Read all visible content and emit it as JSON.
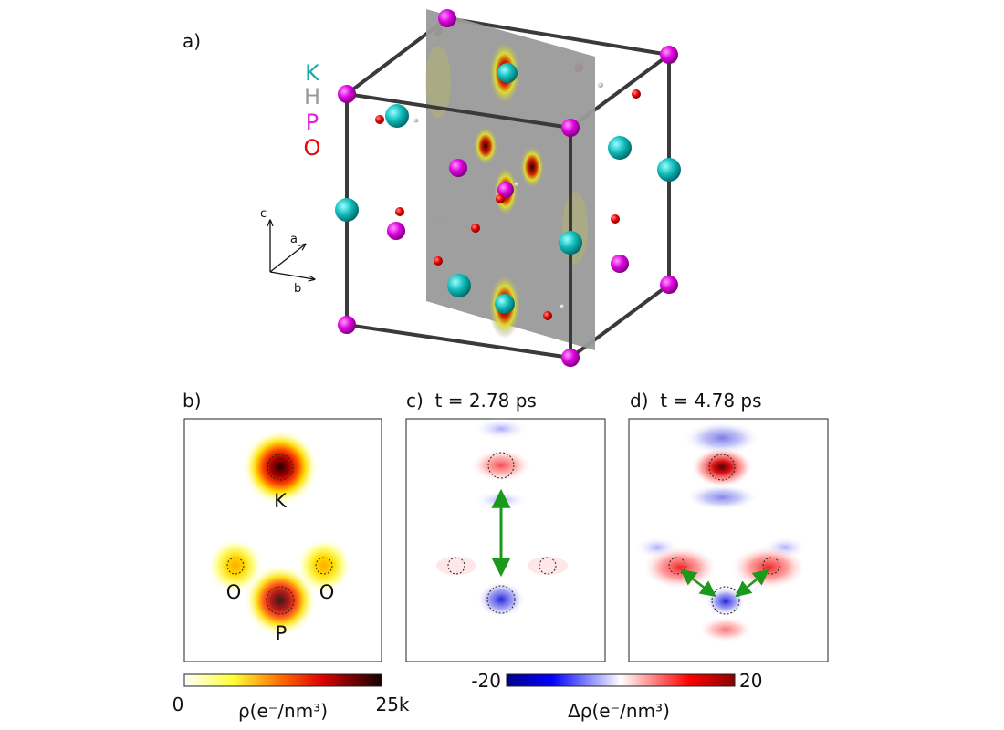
{
  "panel_a": {
    "label": "a)",
    "legend": [
      "K",
      "H",
      "P",
      "O"
    ],
    "axes": [
      "c",
      "a",
      "b"
    ]
  },
  "panel_b": {
    "label": "b)",
    "atoms": [
      "K",
      "O",
      "O",
      "P"
    ]
  },
  "panel_c": {
    "label": "c)  t = 2.78 ps"
  },
  "panel_d": {
    "label": "d)  t = 4.78 ps"
  },
  "colorbar_density": {
    "min": "0",
    "label": "ρ(e⁻/nm³)",
    "max": "25k"
  },
  "colorbar_difference": {
    "min": "-20",
    "label": "Δρ(e⁻/nm³)",
    "max": "20"
  }
}
